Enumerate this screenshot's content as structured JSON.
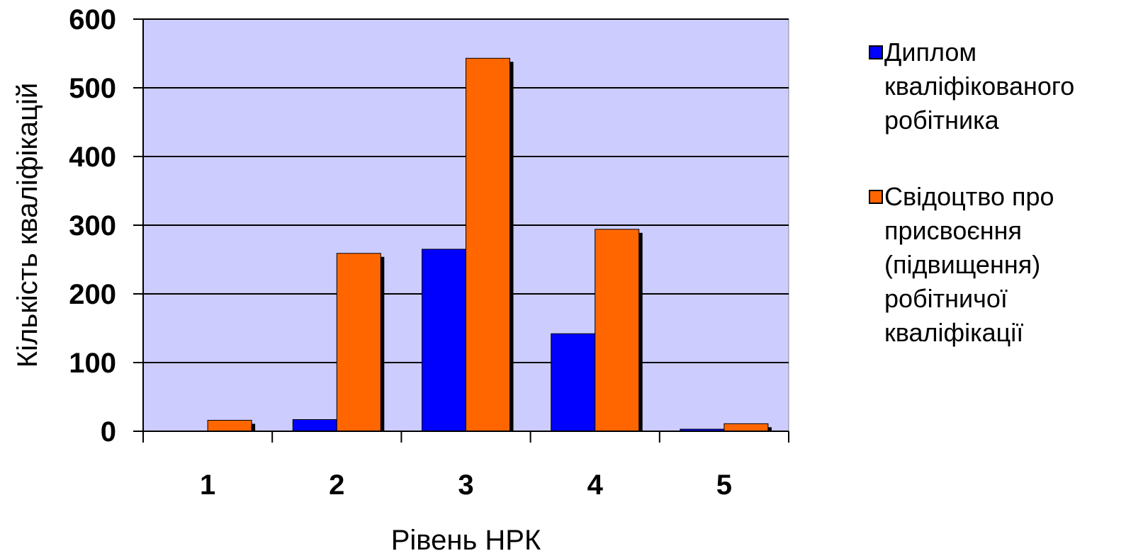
{
  "chart_data": {
    "type": "bar",
    "categories": [
      "1",
      "2",
      "3",
      "4",
      "5"
    ],
    "series": [
      {
        "name": "Диплом\nкваліфікованого\nробітника",
        "color": "#0000FF",
        "values": [
          0,
          17,
          265,
          142,
          3
        ]
      },
      {
        "name": "Свідоцтво про\nприсвоєння\n(підвищення)\nробітничої\nкваліфікації",
        "color": "#FF6600",
        "values": [
          16,
          259,
          543,
          294,
          11
        ]
      }
    ],
    "xlabel": "Рівень НРК",
    "ylabel": "Кількість кваліфікацій",
    "ylim": [
      0,
      600
    ],
    "yticks": [
      "0",
      "100",
      "200",
      "300",
      "400",
      "500",
      "600"
    ],
    "grid": true,
    "legend_position": "right",
    "plot_background": "#CCCCFF"
  }
}
